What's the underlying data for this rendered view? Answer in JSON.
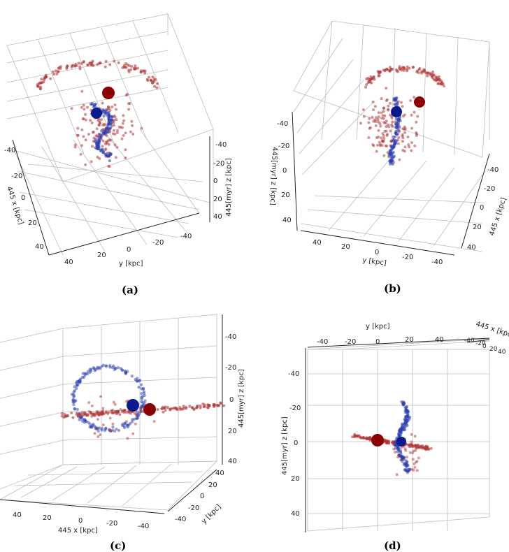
{
  "colors": {
    "red_particles": "#b33a3a",
    "red_center": "#8b0000",
    "blue_particles": "#2a3fb0",
    "blue_center": "#0c1a8f",
    "grid": "#bdbdbd"
  },
  "chart_data": [
    {
      "type": "scatter",
      "panel": "a",
      "caption": "(a)",
      "xlabel": "445 x [kpc]",
      "ylabel": "y [kpc]",
      "zlabel": "445[myr]  z [kpc]",
      "x_ticks": [
        "-40",
        "-20",
        "0",
        "20",
        "40"
      ],
      "y_ticks": [
        "40",
        "20",
        "0",
        "-20",
        "-40"
      ],
      "z_ticks": [
        "-40",
        "-20",
        "0",
        "20",
        "40"
      ],
      "xlim": [
        -50,
        50
      ],
      "ylim": [
        -50,
        50
      ],
      "zlim": [
        -50,
        50
      ],
      "series": [
        {
          "name": "red",
          "color": "#b33a3a",
          "center": [
            -10,
            5,
            -20
          ]
        },
        {
          "name": "blue",
          "color": "#2a3fb0",
          "center": [
            0,
            5,
            -10
          ]
        }
      ]
    },
    {
      "type": "scatter",
      "panel": "b",
      "caption": "(b)",
      "xlabel": "445 x [kpc]",
      "ylabel": "y [kpc]",
      "zlabel": "445[myr]  z [kpc]",
      "x_ticks": [
        "-40",
        "-20",
        "0",
        "20",
        "40"
      ],
      "y_ticks": [
        "40",
        "20",
        "0",
        "-20",
        "-40"
      ],
      "z_ticks": [
        "-40",
        "-20",
        "0",
        "20",
        "40"
      ],
      "xlim": [
        -50,
        50
      ],
      "ylim": [
        -50,
        50
      ],
      "zlim": [
        -50,
        50
      ],
      "series": [
        {
          "name": "red",
          "color": "#b33a3a",
          "center": [
            -10,
            -20,
            -20
          ]
        },
        {
          "name": "blue",
          "color": "#2a3fb0",
          "center": [
            0,
            -5,
            -10
          ]
        }
      ]
    },
    {
      "type": "scatter",
      "panel": "c",
      "caption": "(c)",
      "xlabel": "445 x [kpc]",
      "ylabel": "y [kpc]",
      "zlabel": "445[myr]  z [kpc]",
      "x_ticks": [
        "40",
        "20",
        "0",
        "-20",
        "-40"
      ],
      "y_ticks": [
        "40",
        "20",
        "0",
        "-20",
        "-40"
      ],
      "z_ticks": [
        "-40",
        "-20",
        "0",
        "20",
        "40"
      ],
      "xlim": [
        -50,
        50
      ],
      "ylim": [
        -50,
        50
      ],
      "zlim": [
        -50,
        50
      ],
      "series": [
        {
          "name": "red",
          "color": "#b33a3a",
          "center": [
            -20,
            0,
            5
          ]
        },
        {
          "name": "blue",
          "color": "#2a3fb0",
          "center": [
            -15,
            0,
            3
          ]
        }
      ]
    },
    {
      "type": "scatter",
      "panel": "d",
      "caption": "(d)",
      "xlabel": "445 x [kpc]",
      "ylabel": "y [kpc]",
      "zlabel": "445[myr]  z [kpc]",
      "x_ticks": [
        "-40",
        "-20",
        "0",
        "20",
        "40"
      ],
      "y_ticks": [
        "-40",
        "-20",
        "0",
        "20",
        "40"
      ],
      "z_ticks": [
        "-40",
        "-20",
        "0",
        "20",
        "40"
      ],
      "xlim": [
        -50,
        50
      ],
      "ylim": [
        -50,
        50
      ],
      "zlim": [
        -50,
        50
      ],
      "series": [
        {
          "name": "red",
          "color": "#b33a3a",
          "center": [
            0,
            0,
            0
          ]
        },
        {
          "name": "blue",
          "color": "#2a3fb0",
          "center": [
            15,
            0,
            0
          ]
        }
      ]
    }
  ]
}
